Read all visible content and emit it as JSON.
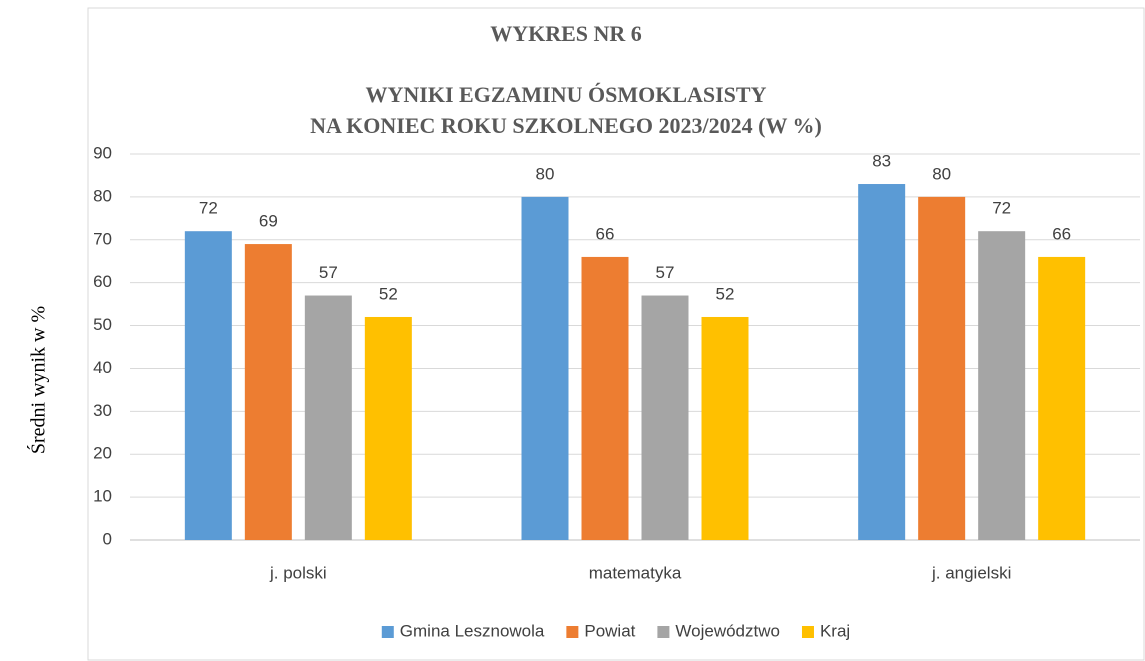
{
  "chart_data": {
    "type": "bar",
    "title": "WYKRES NR 6",
    "subtitle": [
      "WYNIKI EGZAMINU ÓSMOKLASISTY",
      "NA KONIEC ROKU SZKOLNEGO 2023/2024 (W %)"
    ],
    "y_label": "Średni wynik w %",
    "categories": [
      "j. polski",
      "matematyka",
      "j. angielski"
    ],
    "series": [
      {
        "name": "Gmina Lesznowola",
        "color": "#5b9bd5",
        "values": [
          72,
          80,
          83
        ]
      },
      {
        "name": "Powiat",
        "color": "#ed7d31",
        "values": [
          69,
          66,
          80
        ]
      },
      {
        "name": "Województwo",
        "color": "#a5a5a5",
        "values": [
          57,
          57,
          72
        ]
      },
      {
        "name": "Kraj",
        "color": "#ffc000",
        "values": [
          52,
          52,
          66
        ]
      }
    ],
    "ylim": [
      0,
      90
    ],
    "yticks": [
      0,
      10,
      20,
      30,
      40,
      50,
      60,
      70,
      80,
      90
    ],
    "grid": true,
    "legend": "bottom"
  }
}
